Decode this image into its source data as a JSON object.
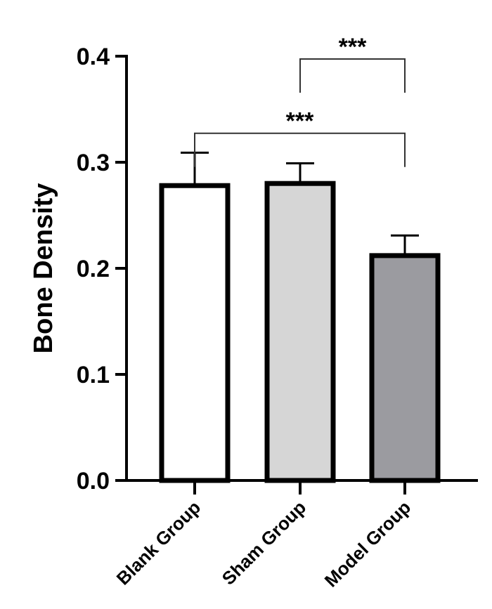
{
  "chart_data": {
    "type": "bar",
    "title": "",
    "xlabel": "",
    "ylabel": "Bone Density",
    "ylim": [
      0,
      0.4
    ],
    "yticks": [
      "0.0",
      "0.1",
      "0.2",
      "0.3",
      "0.4"
    ],
    "grid": false,
    "categories": [
      "Blank Group",
      "Sham Group",
      "Model Group"
    ],
    "values": [
      0.278,
      0.28,
      0.212
    ],
    "errors": [
      0.031,
      0.019,
      0.019
    ],
    "colors": [
      "#ffffff",
      "#d6d6d6",
      "#9b9ba0"
    ],
    "significance": [
      {
        "from": 1,
        "to": 2,
        "label": "***",
        "y": 0.4
      },
      {
        "from": 0,
        "to": 2,
        "label": "***",
        "y": 0.33
      }
    ]
  }
}
